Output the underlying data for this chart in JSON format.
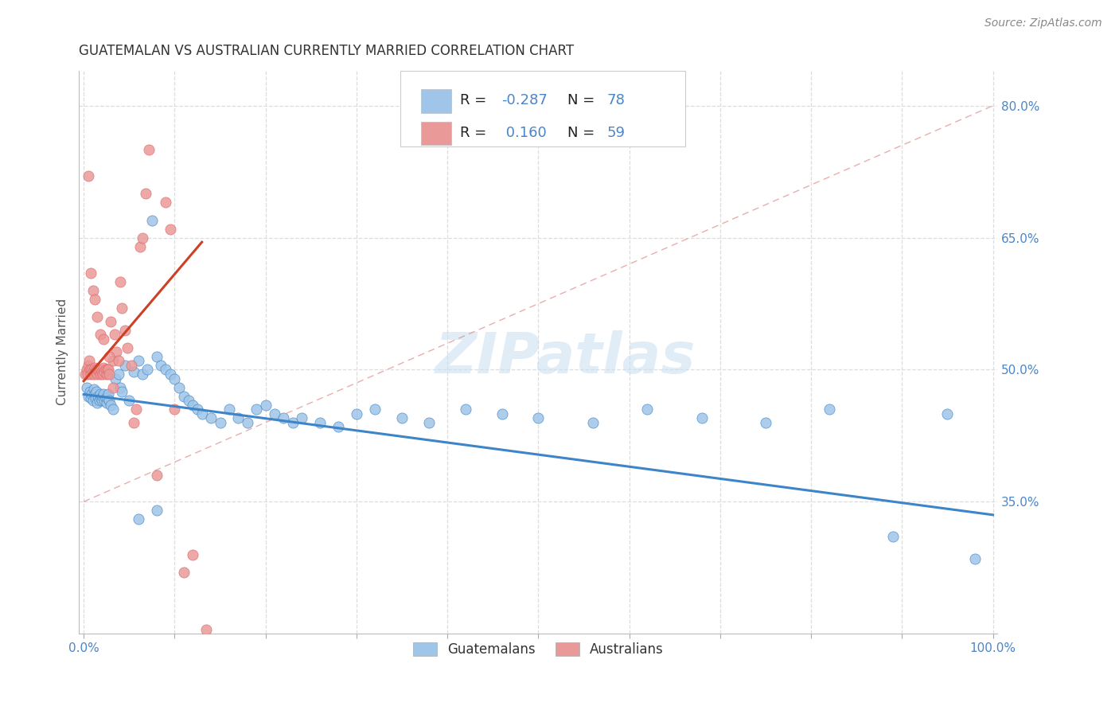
{
  "title": "GUATEMALAN VS AUSTRALIAN CURRENTLY MARRIED CORRELATION CHART",
  "source": "Source: ZipAtlas.com",
  "ylabel": "Currently Married",
  "ylabel_right_ticks": [
    "35.0%",
    "50.0%",
    "65.0%",
    "80.0%"
  ],
  "ylabel_right_vals": [
    0.35,
    0.5,
    0.65,
    0.8
  ],
  "legend_label1": "Guatemalans",
  "legend_label2": "Australians",
  "watermark": "ZIPatlas",
  "blue_color": "#9fc5e8",
  "pink_color": "#ea9999",
  "blue_scatter_color": "#6fa8dc",
  "pink_scatter_color": "#e06666",
  "blue_line_color": "#3d85c8",
  "pink_line_color": "#cc4125",
  "dashed_line_color": "#dd7777",
  "background_color": "#ffffff",
  "grid_color": "#dddddd",
  "tick_color": "#4a86c8",
  "blue_scatter": {
    "x": [
      0.003,
      0.005,
      0.007,
      0.008,
      0.009,
      0.01,
      0.011,
      0.012,
      0.013,
      0.014,
      0.015,
      0.016,
      0.017,
      0.018,
      0.019,
      0.02,
      0.021,
      0.022,
      0.023,
      0.024,
      0.025,
      0.026,
      0.027,
      0.028,
      0.03,
      0.032,
      0.035,
      0.038,
      0.04,
      0.042,
      0.045,
      0.05,
      0.055,
      0.06,
      0.065,
      0.07,
      0.075,
      0.08,
      0.085,
      0.09,
      0.095,
      0.1,
      0.105,
      0.11,
      0.115,
      0.12,
      0.125,
      0.13,
      0.14,
      0.15,
      0.16,
      0.17,
      0.18,
      0.19,
      0.2,
      0.21,
      0.22,
      0.23,
      0.24,
      0.26,
      0.28,
      0.3,
      0.32,
      0.35,
      0.38,
      0.42,
      0.46,
      0.5,
      0.56,
      0.62,
      0.68,
      0.75,
      0.82,
      0.89,
      0.95,
      0.98,
      0.06,
      0.08
    ],
    "y": [
      0.48,
      0.47,
      0.475,
      0.468,
      0.472,
      0.465,
      0.478,
      0.472,
      0.468,
      0.475,
      0.462,
      0.47,
      0.465,
      0.472,
      0.468,
      0.465,
      0.47,
      0.472,
      0.465,
      0.468,
      0.462,
      0.468,
      0.472,
      0.465,
      0.46,
      0.455,
      0.49,
      0.495,
      0.48,
      0.475,
      0.505,
      0.465,
      0.498,
      0.51,
      0.495,
      0.5,
      0.67,
      0.515,
      0.505,
      0.5,
      0.495,
      0.49,
      0.48,
      0.47,
      0.465,
      0.46,
      0.455,
      0.45,
      0.445,
      0.44,
      0.455,
      0.445,
      0.44,
      0.455,
      0.46,
      0.45,
      0.445,
      0.44,
      0.445,
      0.44,
      0.435,
      0.45,
      0.455,
      0.445,
      0.44,
      0.455,
      0.45,
      0.445,
      0.44,
      0.455,
      0.445,
      0.44,
      0.455,
      0.31,
      0.45,
      0.285,
      0.33,
      0.34
    ]
  },
  "pink_scatter": {
    "x": [
      0.002,
      0.003,
      0.004,
      0.005,
      0.006,
      0.007,
      0.008,
      0.009,
      0.01,
      0.011,
      0.012,
      0.013,
      0.014,
      0.015,
      0.016,
      0.017,
      0.018,
      0.019,
      0.02,
      0.021,
      0.022,
      0.023,
      0.024,
      0.025,
      0.026,
      0.027,
      0.028,
      0.03,
      0.032,
      0.034,
      0.036,
      0.038,
      0.04,
      0.042,
      0.045,
      0.048,
      0.052,
      0.055,
      0.058,
      0.062,
      0.065,
      0.068,
      0.072,
      0.08,
      0.09,
      0.095,
      0.1,
      0.11,
      0.12,
      0.135,
      0.005,
      0.008,
      0.01,
      0.012,
      0.015,
      0.018,
      0.022,
      0.028,
      0.032
    ],
    "y": [
      0.495,
      0.5,
      0.495,
      0.505,
      0.51,
      0.5,
      0.495,
      0.5,
      0.498,
      0.495,
      0.502,
      0.498,
      0.5,
      0.495,
      0.5,
      0.498,
      0.495,
      0.5,
      0.498,
      0.495,
      0.502,
      0.498,
      0.5,
      0.495,
      0.5,
      0.5,
      0.495,
      0.555,
      0.51,
      0.54,
      0.52,
      0.51,
      0.6,
      0.57,
      0.545,
      0.525,
      0.505,
      0.44,
      0.455,
      0.64,
      0.65,
      0.7,
      0.75,
      0.38,
      0.69,
      0.66,
      0.455,
      0.27,
      0.29,
      0.205,
      0.72,
      0.61,
      0.59,
      0.58,
      0.56,
      0.54,
      0.535,
      0.515,
      0.48
    ]
  },
  "blue_line": {
    "x0": 0.0,
    "x1": 1.0,
    "y0": 0.472,
    "y1": 0.335
  },
  "pink_line": {
    "x0": 0.0,
    "x1": 0.13,
    "y0": 0.487,
    "y1": 0.645
  },
  "dashed_line": {
    "x0": 0.0,
    "x1": 1.0,
    "y0": 0.35,
    "y1": 0.8
  },
  "xlim": [
    -0.005,
    1.005
  ],
  "ylim": [
    0.2,
    0.84
  ],
  "yticks": [
    0.35,
    0.5,
    0.65,
    0.8
  ],
  "xticks": [
    0.0,
    0.1,
    0.2,
    0.3,
    0.4,
    0.5,
    0.6,
    0.7,
    0.8,
    0.9,
    1.0
  ],
  "title_fontsize": 12,
  "source_fontsize": 10,
  "watermark_fontsize": 52,
  "axis_fontsize": 11,
  "legend_fontsize": 13
}
